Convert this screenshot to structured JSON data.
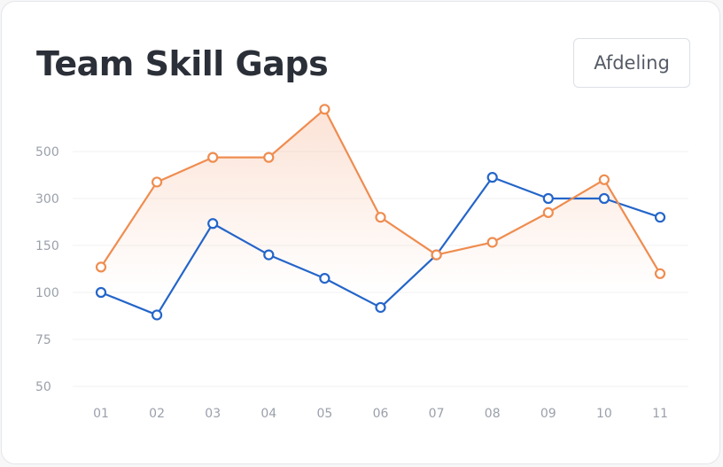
{
  "title": "Team Skill Gaps",
  "filter_button": "Afdeling",
  "colors": {
    "blue": "#2465c9",
    "orange": "#ef8c4f"
  },
  "chart_data": {
    "type": "line",
    "x": [
      "01",
      "02",
      "03",
      "04",
      "05",
      "06",
      "07",
      "08",
      "09",
      "10",
      "11"
    ],
    "yticks": [
      50,
      75,
      100,
      150,
      300,
      500
    ],
    "grid": true,
    "series": [
      {
        "color": "blue",
        "values": [
          100,
          88,
          220,
          140,
          115,
          92,
          140,
          390,
          300,
          300,
          240
        ]
      },
      {
        "color": "orange",
        "values": [
          127,
          370,
          475,
          475,
          680,
          240,
          140,
          160,
          255,
          380,
          120
        ],
        "area": true
      }
    ]
  }
}
